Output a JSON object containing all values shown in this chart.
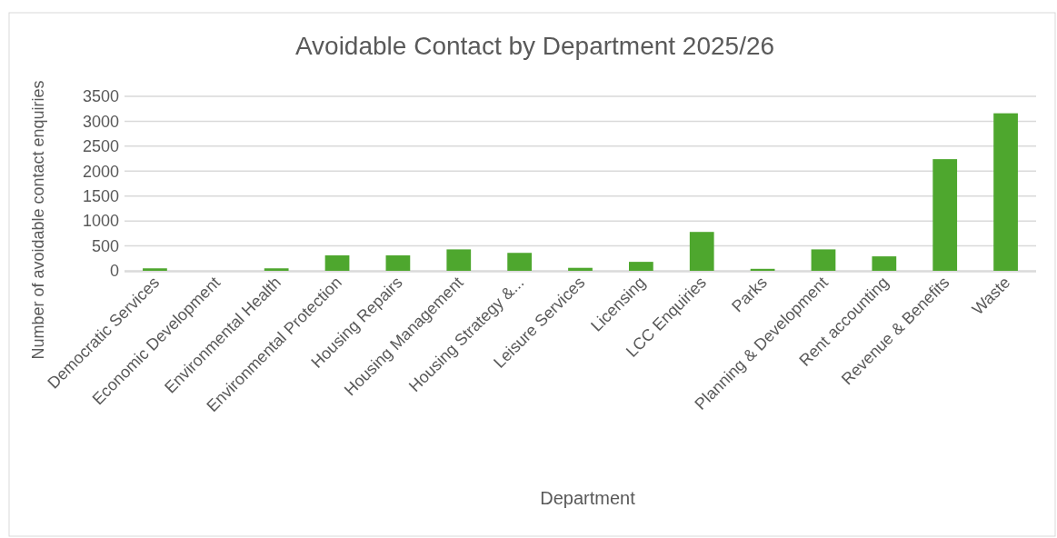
{
  "chart_data": {
    "type": "bar",
    "title": "Avoidable Contact by Department 2025/26",
    "xlabel": "Department",
    "ylabel": "Number of avoidable contact enquiries",
    "categories": [
      "Democratic Services",
      "Economic Development",
      "Environmental Health",
      "Environmental Protection",
      "Housing Repairs",
      "Housing Management",
      "Housing Strategy &...",
      "Leisure Services",
      "Licensing",
      "LCC Enquiries",
      "Parks",
      "Planning & Development",
      "Rent accounting",
      "Revenue & Benefits",
      "Waste"
    ],
    "values": [
      50,
      0,
      50,
      310,
      310,
      430,
      360,
      60,
      180,
      780,
      40,
      430,
      290,
      2240,
      3160
    ],
    "color": "#4ea72e",
    "ylim": [
      0,
      3500
    ],
    "yticks": [
      0,
      500,
      1000,
      1500,
      2000,
      2500,
      3000,
      3500
    ],
    "grid": "y"
  }
}
